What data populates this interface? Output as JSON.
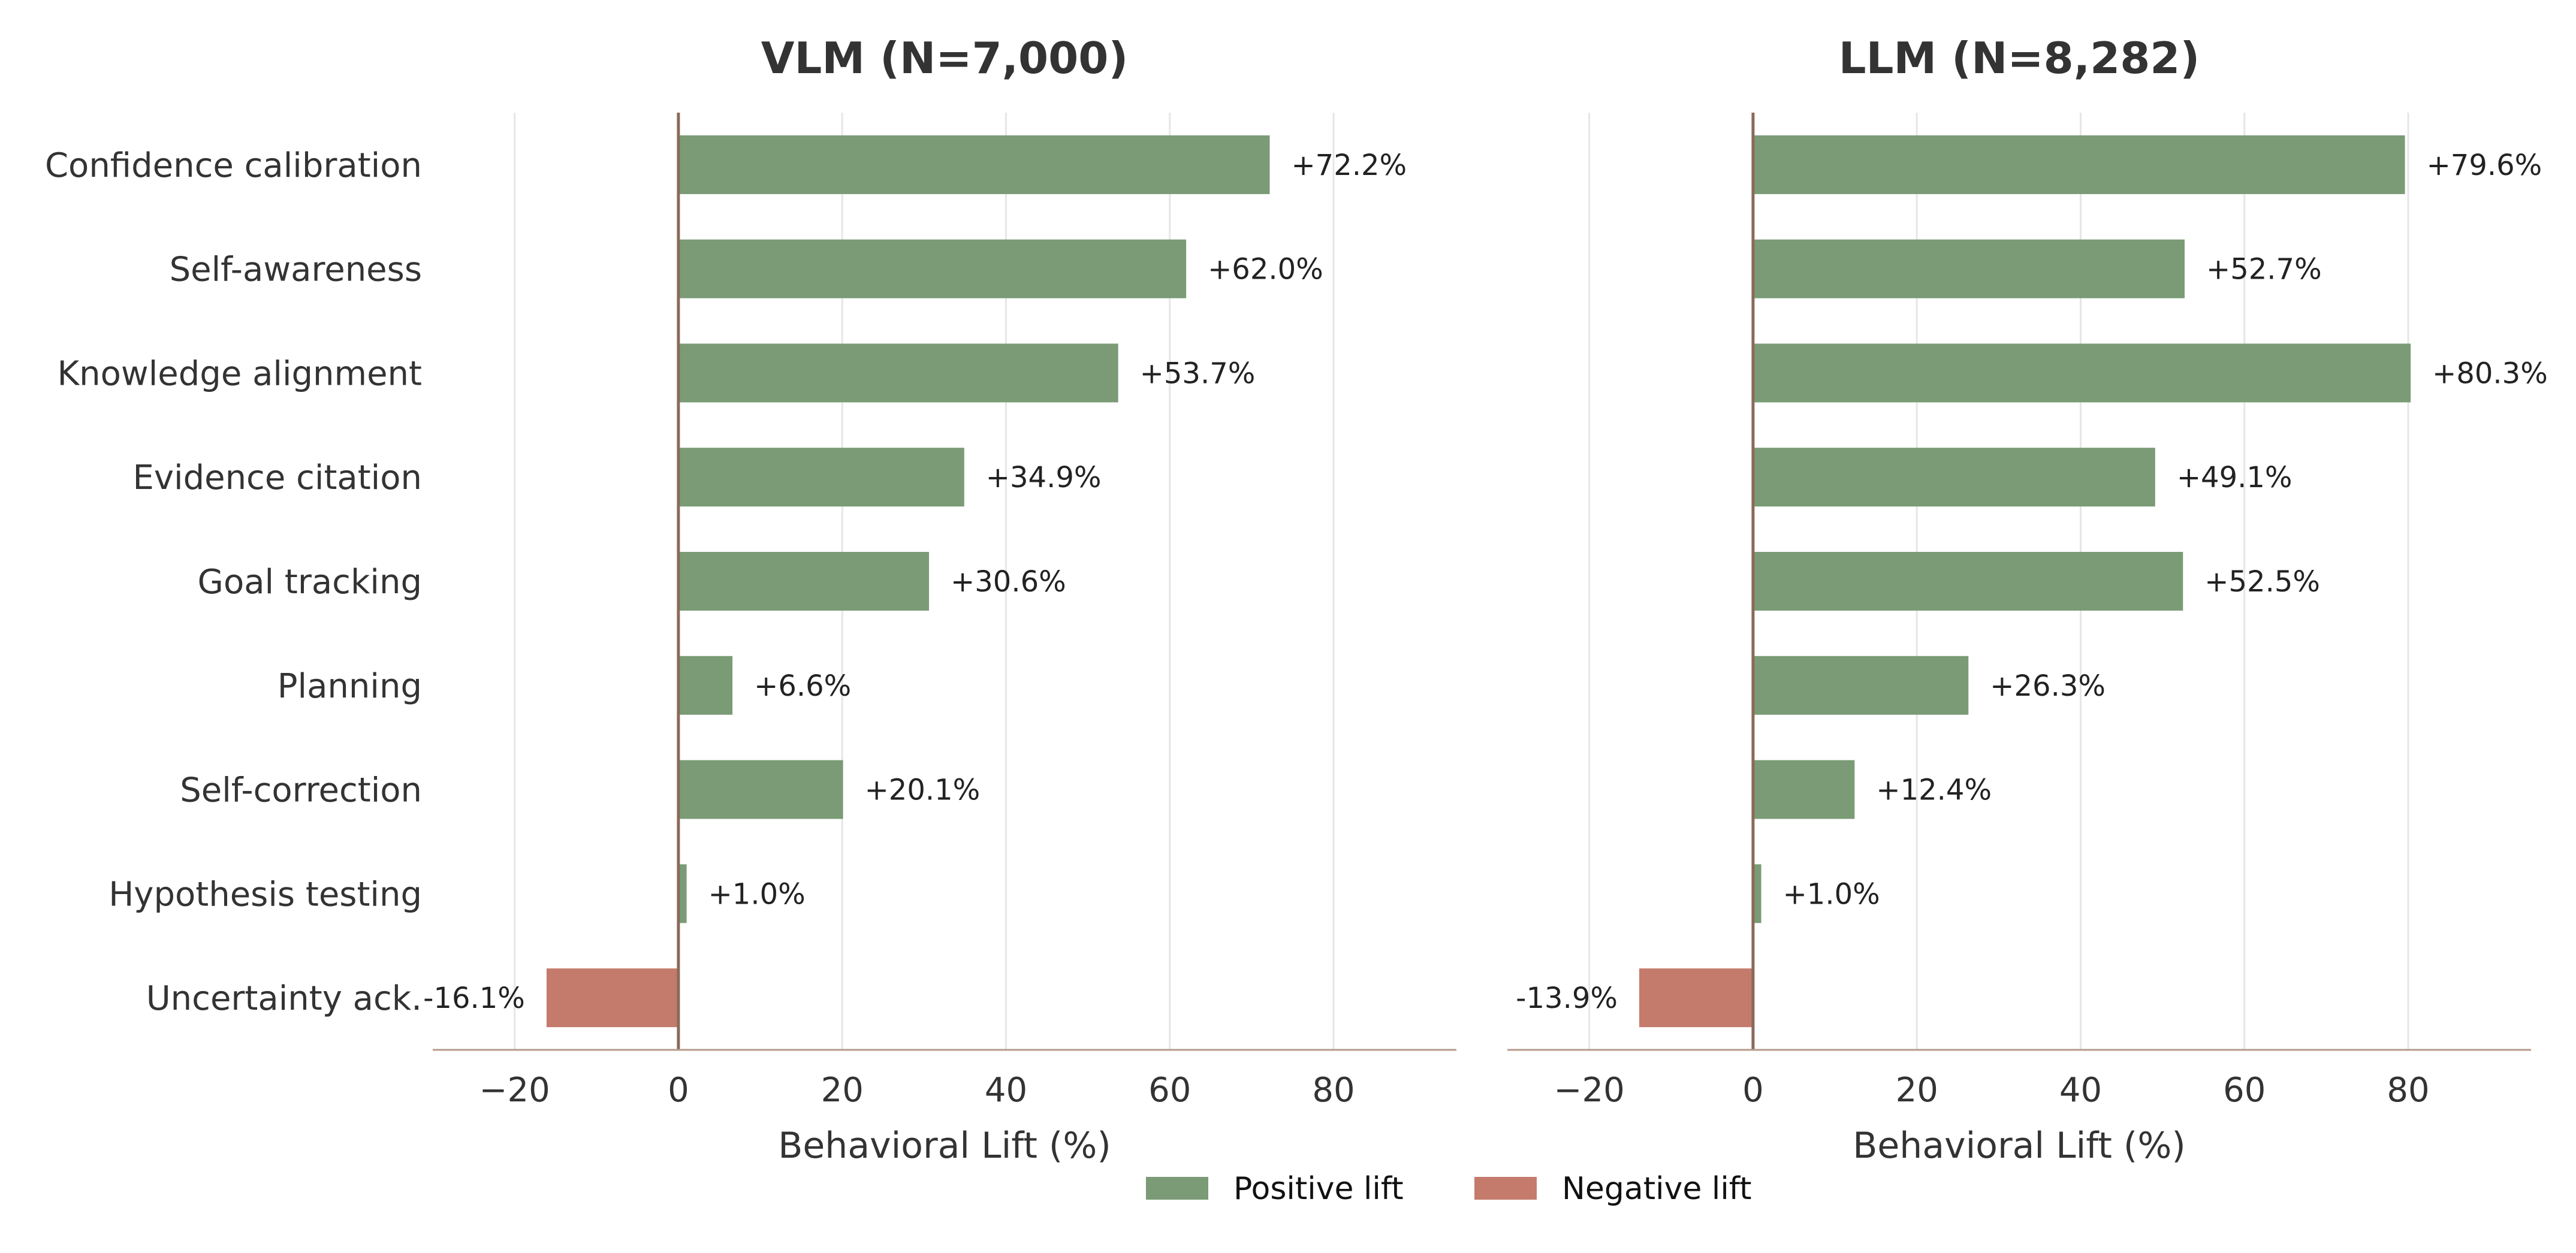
{
  "colors": {
    "positive": "#7a9b75",
    "negative": "#c47b6c"
  },
  "legend": [
    {
      "label": "Positive lift",
      "color": "#7a9b75"
    },
    {
      "label": "Negative lift",
      "color": "#c47b6c"
    }
  ],
  "chart_data": [
    {
      "type": "bar",
      "orientation": "horizontal",
      "title": "VLM (N=7,000)",
      "xlabel": "Behavioral Lift (%)",
      "xlim": [
        -30,
        95
      ],
      "xticks": [
        -20,
        0,
        20,
        40,
        60,
        80
      ],
      "xtick_labels": [
        "−20",
        "0",
        "20",
        "40",
        "60",
        "80"
      ],
      "grid": "vertical",
      "categories": [
        "Confidence calibration",
        "Self-awareness",
        "Knowledge alignment",
        "Evidence citation",
        "Goal tracking",
        "Planning",
        "Self-correction",
        "Hypothesis testing",
        "Uncertainty ack."
      ],
      "values": [
        72.2,
        62.0,
        53.7,
        34.9,
        30.6,
        6.6,
        20.1,
        1.0,
        -16.1
      ],
      "labels": [
        "+72.2%",
        "+62.0%",
        "+53.7%",
        "+34.9%",
        "+30.6%",
        "+6.6%",
        "+20.1%",
        "+1.0%",
        "-16.1%"
      ]
    },
    {
      "type": "bar",
      "orientation": "horizontal",
      "title": "LLM (N=8,282)",
      "xlabel": "Behavioral Lift (%)",
      "xlim": [
        -30,
        95
      ],
      "xticks": [
        -20,
        0,
        20,
        40,
        60,
        80
      ],
      "xtick_labels": [
        "−20",
        "0",
        "20",
        "40",
        "60",
        "80"
      ],
      "grid": "vertical",
      "categories": [
        "Confidence calibration",
        "Self-awareness",
        "Knowledge alignment",
        "Evidence citation",
        "Goal tracking",
        "Planning",
        "Self-correction",
        "Hypothesis testing",
        "Uncertainty ack."
      ],
      "values": [
        79.6,
        52.7,
        80.3,
        49.1,
        52.5,
        26.3,
        12.4,
        1.0,
        -13.9
      ],
      "labels": [
        "+79.6%",
        "+52.7%",
        "+80.3%",
        "+49.1%",
        "+52.5%",
        "+26.3%",
        "+12.4%",
        "+1.0%",
        "-13.9%"
      ]
    }
  ]
}
